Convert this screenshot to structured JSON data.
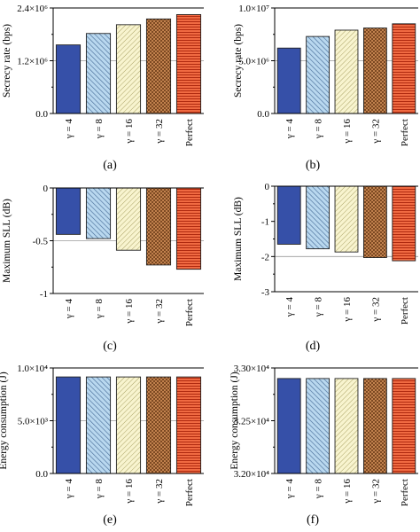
{
  "chart_data": [
    {
      "type": "bar",
      "panel": "(a)",
      "ylabel": "Secrecy rate (bps)",
      "categories": [
        "γ = 4",
        "γ = 8",
        "γ = 16",
        "γ = 32",
        "Perfect"
      ],
      "values": [
        1560000,
        1820000,
        2020000,
        2150000,
        2250000
      ],
      "ylim": [
        0,
        2400000
      ],
      "yticks": [
        0,
        1200000,
        2400000
      ],
      "yticklabels": [
        "0.0",
        "1.2×10⁶",
        "2.4×10⁶"
      ],
      "reference_line": 1200000
    },
    {
      "type": "bar",
      "panel": "(b)",
      "ylabel": "Secrecy rate (bps)",
      "categories": [
        "γ = 4",
        "γ = 8",
        "γ = 16",
        "γ = 32",
        "Perfect"
      ],
      "values": [
        6200000,
        7300000,
        7900000,
        8100000,
        8500000
      ],
      "ylim": [
        0,
        10000000
      ],
      "yticks": [
        0,
        5000000,
        10000000
      ],
      "yticklabels": [
        "0.0",
        "5.0×10⁶",
        "1.0×10⁷"
      ],
      "reference_line": 5000000
    },
    {
      "type": "bar",
      "panel": "(c)",
      "ylabel": "Maximum SLL (dB)",
      "categories": [
        "γ = 4",
        "γ = 8",
        "γ = 16",
        "γ = 32",
        "Perfect"
      ],
      "values": [
        -0.44,
        -0.48,
        -0.59,
        -0.73,
        -0.77
      ],
      "ylim": [
        -1,
        0
      ],
      "yticks": [
        0,
        -0.5,
        -1
      ],
      "yticklabels": [
        "0",
        "-0.5",
        "-1"
      ],
      "reference_line": -0.5
    },
    {
      "type": "bar",
      "panel": "(d)",
      "ylabel": "Maximum SLL (dB)",
      "categories": [
        "γ = 4",
        "γ = 8",
        "γ = 16",
        "γ = 32",
        "Perfect"
      ],
      "values": [
        -1.65,
        -1.78,
        -1.87,
        -2.03,
        -2.12
      ],
      "ylim": [
        -3,
        0
      ],
      "yticks": [
        0,
        -1,
        -2,
        -3
      ],
      "yticklabels": [
        "0",
        "-1",
        "-2",
        "-3"
      ],
      "reference_line": -2
    },
    {
      "type": "bar",
      "panel": "(e)",
      "ylabel": "Energy consumption (J)",
      "categories": [
        "γ = 4",
        "γ = 8",
        "γ = 16",
        "γ = 32",
        "Perfect"
      ],
      "values": [
        9150,
        9150,
        9150,
        9150,
        9150
      ],
      "ylim": [
        0,
        10000
      ],
      "yticks": [
        0,
        5000,
        10000
      ],
      "yticklabels": [
        "0.0",
        "5.0×10³",
        "1.0×10⁴"
      ],
      "reference_line": 5000
    },
    {
      "type": "bar",
      "panel": "(f)",
      "ylabel": "Energy consumption (J)",
      "categories": [
        "γ = 4",
        "γ = 8",
        "γ = 16",
        "γ = 32",
        "Perfect"
      ],
      "values": [
        32900,
        32900,
        32900,
        32900,
        32900
      ],
      "ylim": [
        32000,
        33000
      ],
      "yticks": [
        32000,
        32500,
        33000
      ],
      "yticklabels": [
        "3.20×10⁴",
        "3.25×10⁴",
        "3.30×10⁴"
      ],
      "reference_line": null
    }
  ],
  "style": {
    "bar_colors": [
      "#3650a8",
      "#a9cde8",
      "#f7f2c4",
      "#c8844c",
      "#ec5a36"
    ],
    "bar_patterns": [
      "solid",
      "diagonal-hatch",
      "diagonal-hatch-light",
      "crosshatch",
      "horizontal-lines"
    ],
    "axis_color": "#000000",
    "reference_line_color": "#9a9a9a"
  }
}
